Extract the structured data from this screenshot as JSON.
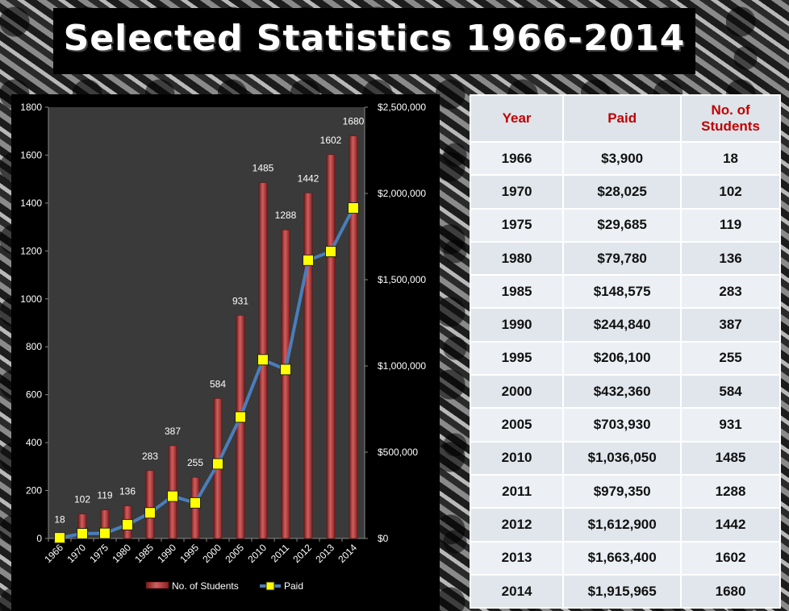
{
  "title": "Selected Statistics 1966-2014",
  "table": {
    "headers": {
      "year": "Year",
      "paid": "Paid",
      "students": "No. of Students"
    },
    "rows": [
      {
        "year": "1966",
        "paid": "$3,900",
        "students": "18"
      },
      {
        "year": "1970",
        "paid": "$28,025",
        "students": "102"
      },
      {
        "year": "1975",
        "paid": "$29,685",
        "students": "119"
      },
      {
        "year": "1980",
        "paid": "$79,780",
        "students": "136"
      },
      {
        "year": "1985",
        "paid": "$148,575",
        "students": "283"
      },
      {
        "year": "1990",
        "paid": "$244,840",
        "students": "387"
      },
      {
        "year": "1995",
        "paid": "$206,100",
        "students": "255"
      },
      {
        "year": "2000",
        "paid": "$432,360",
        "students": "584"
      },
      {
        "year": "2005",
        "paid": "$703,930",
        "students": "931"
      },
      {
        "year": "2010",
        "paid": "$1,036,050",
        "students": "1485"
      },
      {
        "year": "2011",
        "paid": "$979,350",
        "students": "1288"
      },
      {
        "year": "2012",
        "paid": "$1,612,900",
        "students": "1442"
      },
      {
        "year": "2013",
        "paid": "$1,663,400",
        "students": "1602"
      },
      {
        "year": "2014",
        "paid": "$1,915,965",
        "students": "1680"
      }
    ]
  },
  "chart_data": {
    "type": "bar",
    "categories": [
      "1966",
      "1970",
      "1975",
      "1980",
      "1985",
      "1990",
      "1995",
      "2000",
      "2005",
      "2010",
      "2011",
      "2012",
      "2013",
      "2014"
    ],
    "series": [
      {
        "name": "No. of Students",
        "type": "bar",
        "axis": "left",
        "color": "#a52a2a",
        "values": [
          18,
          102,
          119,
          136,
          283,
          387,
          255,
          584,
          931,
          1485,
          1288,
          1442,
          1602,
          1680
        ],
        "labels": [
          "18",
          "102",
          "119",
          "136",
          "283",
          "387",
          "255",
          "584",
          "931",
          "1485",
          "1288",
          "1442",
          "1602",
          "1680"
        ]
      },
      {
        "name": "Paid",
        "type": "line",
        "axis": "right",
        "color": "#4a7ebb",
        "marker_color": "#ffff00",
        "values": [
          3900,
          28025,
          29685,
          79780,
          148575,
          244840,
          206100,
          432360,
          703930,
          1036050,
          979350,
          1612900,
          1663400,
          1915965
        ]
      }
    ],
    "y_left": {
      "min": 0,
      "max": 1800,
      "ticks": [
        "0",
        "200",
        "400",
        "600",
        "800",
        "1000",
        "1200",
        "1400",
        "1600",
        "1800"
      ]
    },
    "y_right": {
      "min": 0,
      "max": 2500000,
      "ticks": [
        "$0",
        "$500,000",
        "$1,000,000",
        "$1,500,000",
        "$2,000,000",
        "$2,500,000"
      ]
    },
    "legend_position": "bottom",
    "grid": false,
    "plot_background": "#3a3a3a"
  }
}
